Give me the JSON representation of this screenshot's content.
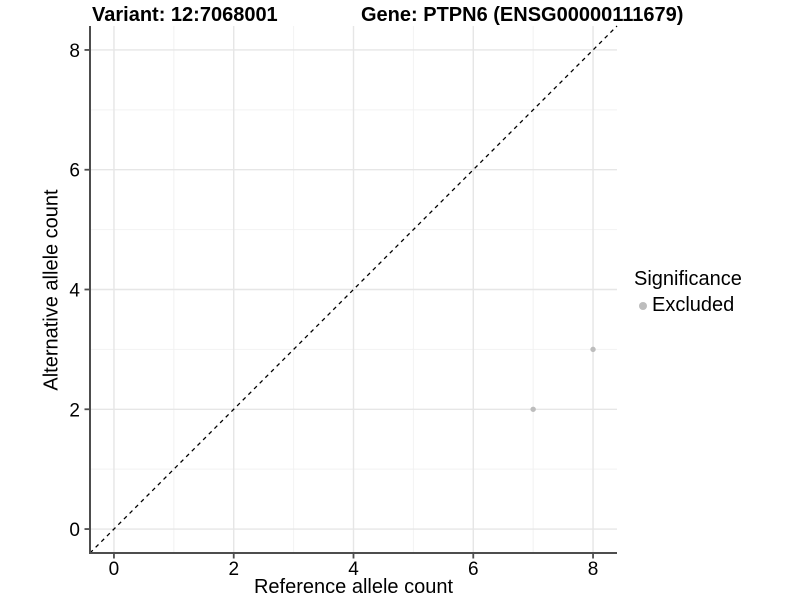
{
  "chart_data": {
    "type": "scatter",
    "title_variant": "Variant: 12:7068001",
    "title_gene": "Gene: PTPN6 (ENSG00000111679)",
    "xlabel": "Reference allele count",
    "ylabel": "Alternative allele count",
    "xlim": [
      -0.4,
      8.4
    ],
    "ylim": [
      -0.4,
      8.4
    ],
    "xticks": [
      0,
      2,
      4,
      6,
      8
    ],
    "yticks": [
      0,
      2,
      4,
      6,
      8
    ],
    "x_minor_ticks": [
      1,
      3,
      5,
      7
    ],
    "y_minor_ticks": [
      1,
      3,
      5,
      7
    ],
    "grid": "major+minor",
    "series": [
      {
        "name": "Excluded",
        "color": "#bdbdbd",
        "points": [
          {
            "x": 7,
            "y": 2
          },
          {
            "x": 8,
            "y": 3
          }
        ]
      }
    ],
    "reference_line": {
      "kind": "identity y=x",
      "style": "dashed",
      "color": "#000000"
    },
    "legend": {
      "title": "Significance",
      "position": "right",
      "items": [
        {
          "label": "Excluded",
          "color": "#bdbdbd"
        }
      ]
    }
  },
  "colors": {
    "background": "#ffffff",
    "axis": "#4d4d4d",
    "grid_major": "#e6e6e6",
    "grid_minor": "#f2f2f2",
    "text": "#000000"
  }
}
